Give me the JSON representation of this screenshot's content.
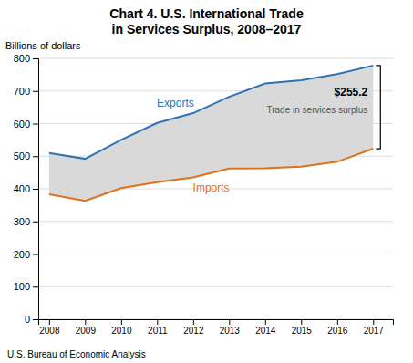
{
  "chart_data": {
    "type": "line",
    "title": "Chart 4. U.S. International Trade",
    "subtitle": "in Services Surplus, 2008–2017",
    "y_label": "Billions of dollars",
    "x": [
      2008,
      2009,
      2010,
      2011,
      2012,
      2013,
      2014,
      2015,
      2016,
      2017
    ],
    "series": [
      {
        "name": "Exports",
        "color": "#2E74B5",
        "values": [
          510,
          492,
          550,
          602,
          632,
          682,
          723,
          733,
          752,
          778
        ]
      },
      {
        "name": "Imports",
        "color": "#E07020",
        "values": [
          383,
          363,
          402,
          420,
          435,
          462,
          463,
          468,
          483,
          523
        ]
      }
    ],
    "color": "#D9D9D9",
    "annotations": [
      "$255.2",
      "Trade in services surplus",
      "U.S. Bureau of Economic Analysis"
    ],
    "xlim": [
      2007.7,
      2017.55
    ],
    "xticks": [
      2008,
      2009,
      2010,
      2011,
      2012,
      2013,
      2014,
      2015,
      2016,
      2017
    ],
    "ylim": [
      0,
      800
    ],
    "yticks": [
      0,
      100,
      200,
      300,
      400,
      500,
      600,
      700,
      800
    ],
    "grid": true
  }
}
